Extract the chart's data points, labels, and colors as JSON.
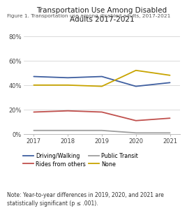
{
  "title": "Transportation Use Among Disabled\nAdults 2017-2021",
  "figure_label": "Figure 1. Transportation use among disabled adults, 2017-2021",
  "note": "Note: Year-to-year differences in 2019, 2020, and 2021 are\nstatistically significant (p ≤ .001).",
  "years": [
    2017,
    2018,
    2019,
    2020,
    2021
  ],
  "series_order": [
    "Driving/Walking",
    "Rides from others",
    "Public Transit",
    "None"
  ],
  "series": {
    "Driving/Walking": {
      "values": [
        47,
        46,
        47,
        39,
        42
      ],
      "color": "#3f5fa0"
    },
    "Rides from others": {
      "values": [
        18,
        19,
        18,
        11,
        13
      ],
      "color": "#c0504d"
    },
    "Public Transit": {
      "values": [
        3,
        3,
        3,
        1,
        1
      ],
      "color": "#9e9e9e"
    },
    "None": {
      "values": [
        40,
        40,
        39,
        52,
        48
      ],
      "color": "#c8a400"
    }
  },
  "ylim": [
    0,
    88
  ],
  "yticks": [
    0,
    20,
    40,
    60,
    80
  ],
  "ytick_labels": [
    "0%",
    "20%",
    "40%",
    "60%",
    "80%"
  ],
  "background_color": "#ffffff",
  "grid_color": "#cccccc",
  "title_fontsize": 7.5,
  "legend_fontsize": 5.8,
  "tick_fontsize": 6,
  "note_fontsize": 5.5,
  "figure_label_fontsize": 5.3,
  "linewidth": 1.3
}
